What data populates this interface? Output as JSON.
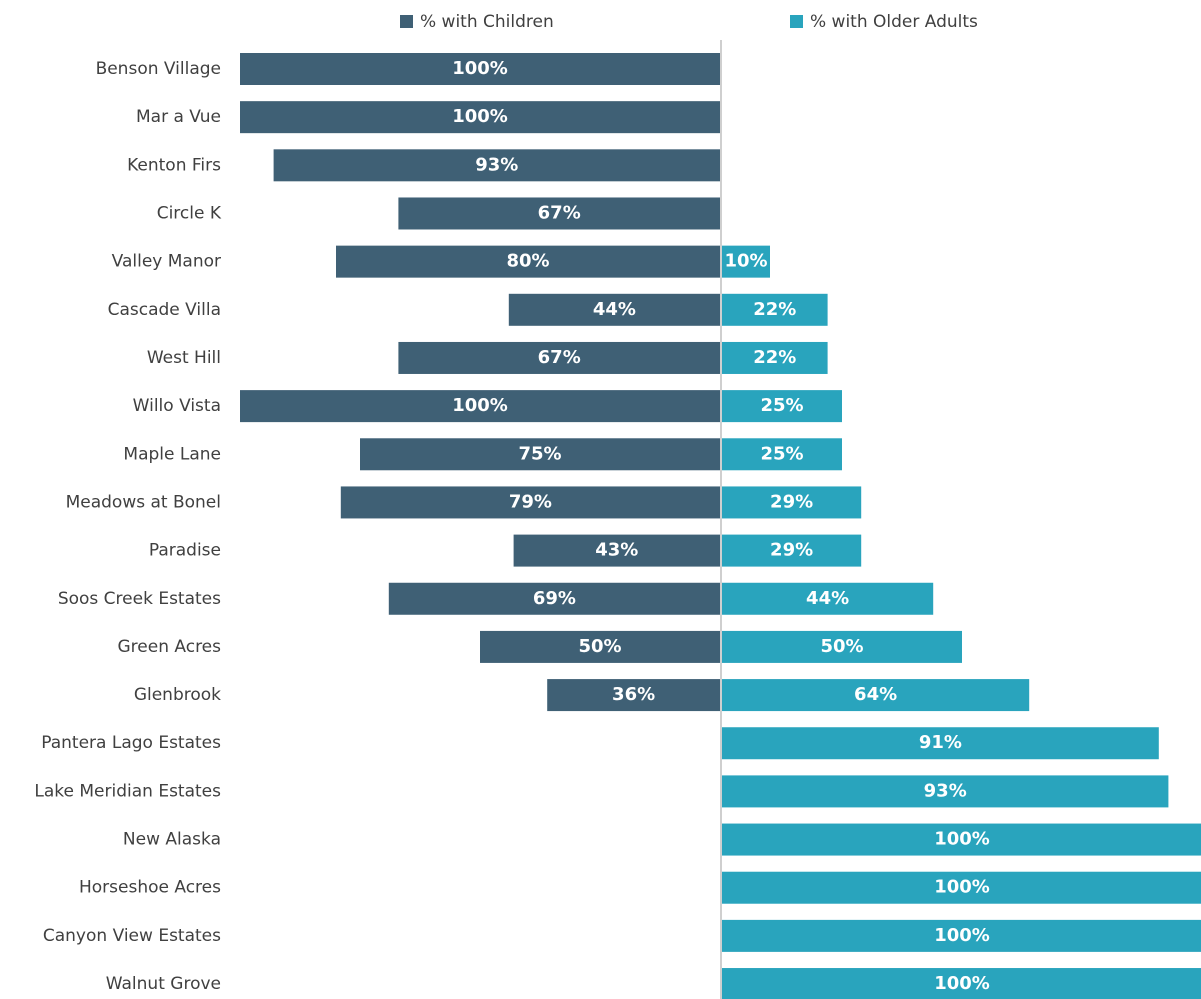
{
  "chart_data": {
    "type": "diverging-bar",
    "categories": [
      "Benson Village",
      "Mar a Vue",
      "Kenton Firs",
      "Circle K",
      "Valley Manor",
      "Cascade Villa",
      "West Hill",
      "Willo Vista",
      "Maple Lane",
      "Meadows at Bonel",
      "Paradise",
      "Soos Creek Estates",
      "Green Acres",
      "Glenbrook",
      "Pantera Lago Estates",
      "Lake Meridian Estates",
      "New Alaska",
      "Horseshoe Acres",
      "Canyon View Estates",
      "Walnut Grove"
    ],
    "series": [
      {
        "name": "% with Children",
        "color": "#3f6075",
        "values": [
          100,
          100,
          93,
          67,
          80,
          44,
          67,
          100,
          75,
          79,
          43,
          69,
          50,
          36,
          null,
          null,
          null,
          null,
          null,
          null
        ],
        "value_labels": [
          "100%",
          "100%",
          "93%",
          "67%",
          "80%",
          "44%",
          "67%",
          "100%",
          "75%",
          "79%",
          "43%",
          "69%",
          "50%",
          "36%",
          null,
          null,
          null,
          null,
          null,
          null
        ]
      },
      {
        "name": "% with Older Adults",
        "color": "#29a4bd",
        "values": [
          null,
          null,
          null,
          null,
          10,
          22,
          22,
          25,
          25,
          29,
          29,
          44,
          50,
          64,
          91,
          93,
          100,
          100,
          100,
          100
        ],
        "value_labels": [
          null,
          null,
          null,
          null,
          "10%",
          "22%",
          "22%",
          "25%",
          "25%",
          "29%",
          "29%",
          "44%",
          "50%",
          "64%",
          "91%",
          "93%",
          "100%",
          "100%",
          "100%",
          "100%"
        ]
      }
    ]
  }
}
